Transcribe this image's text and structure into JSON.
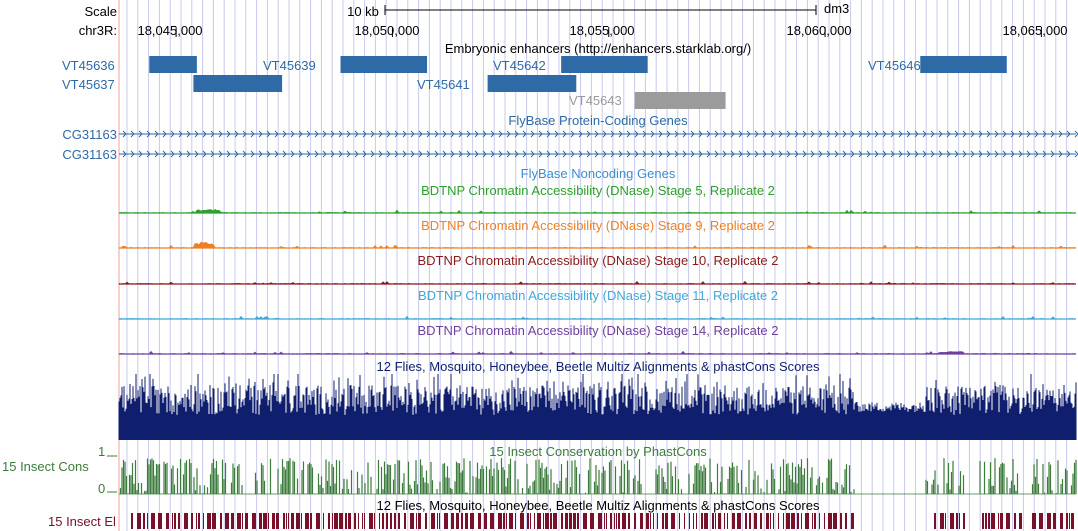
{
  "header": {
    "scale_label": "Scale",
    "scale_bar_label": "10 kb",
    "assembly": "dm3",
    "chrom_label": "chr3R:"
  },
  "ruler": {
    "ticks": [
      18045000,
      18050000,
      18055000,
      18060000,
      18065000
    ],
    "tick_labels": [
      "18,045,000",
      "18,050,000",
      "18,055,000",
      "18,060,000",
      "18,065,000"
    ]
  },
  "tracks": {
    "enhancers": {
      "title": "Embryonic enhancers (http://enhancers.starklab.org/)",
      "color": "#2e6aa5",
      "inactive_color": "#9b9b9b",
      "items": [
        {
          "name": "VT45636",
          "start": 18044380,
          "end": 18045480,
          "row": 0,
          "active": true
        },
        {
          "name": "VT45637",
          "start": 18045400,
          "end": 18047450,
          "row": 1,
          "active": true
        },
        {
          "name": "VT45639",
          "start": 18048800,
          "end": 18050800,
          "row": 0,
          "active": true
        },
        {
          "name": "VT45642",
          "start": 18053900,
          "end": 18055900,
          "row": 0,
          "active": true
        },
        {
          "name": "VT45641",
          "start": 18052200,
          "end": 18054250,
          "row": 1,
          "active": true
        },
        {
          "name": "VT45643",
          "start": 18055600,
          "end": 18057700,
          "row": 2,
          "active": false
        },
        {
          "name": "VT45646",
          "start": 18062200,
          "end": 18064200,
          "row": 0,
          "active": true
        }
      ]
    },
    "genes": {
      "title": "FlyBase Protein-Coding Genes",
      "color": "#2e6aa5",
      "items": [
        "CG31163",
        "CG31163"
      ]
    },
    "noncoding": {
      "title": "FlyBase Noncoding Genes",
      "color": "#3a8dd0"
    },
    "dnase": [
      {
        "title": "BDTNP Chromatin Accessibility (DNase) Stage 5, Replicate 2",
        "color": "#2ca02c"
      },
      {
        "title": "BDTNP Chromatin Accessibility (DNase) Stage 9, Replicate 2",
        "color": "#f07f21"
      },
      {
        "title": "BDTNP Chromatin Accessibility (DNase) Stage 10, Replicate 2",
        "color": "#8b1a1a"
      },
      {
        "title": "BDTNP Chromatin Accessibility (DNase) Stage 11, Replicate 2",
        "color": "#3fa8d6"
      },
      {
        "title": "BDTNP Chromatin Accessibility (DNase) Stage 14, Replicate 2",
        "color": "#6f3fa0"
      }
    ],
    "multiz": {
      "title": "12 Flies, Mosquito, Honeybee, Beetle Multiz Alignments & phastCons Scores",
      "color": "#0f1f6e"
    },
    "phastcons": {
      "title": "15 Insect Conservation by PhastCons",
      "label": "15 Insect Cons",
      "scale_max": "1",
      "scale_min": "0",
      "color": "#3c7c3c"
    },
    "elements": {
      "title": "12 Flies, Mosquito, Honeybee, Beetle Multiz Alignments & phastCons Scores",
      "label": "15 Insect El",
      "color": "#7a0f2a"
    }
  },
  "colors": {
    "grid_line": "#c9c9ef",
    "left_edge": "#f0a0a0",
    "label_blue": "#2e6aa5"
  }
}
